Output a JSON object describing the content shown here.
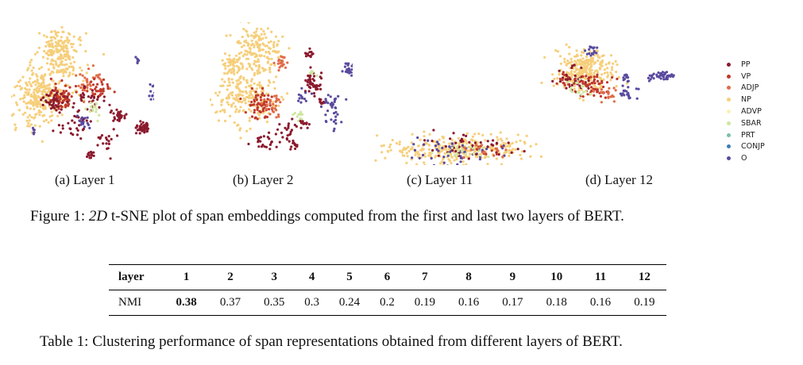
{
  "figure": {
    "panels": [
      {
        "id": "a",
        "caption": "(a) Layer 1"
      },
      {
        "id": "b",
        "caption": "(b) Layer 2"
      },
      {
        "id": "c",
        "caption": "(c) Layer 11"
      },
      {
        "id": "d",
        "caption": "(d) Layer 12"
      }
    ],
    "legend": [
      {
        "label": "PP",
        "color": "#8b1a2e"
      },
      {
        "label": "VP",
        "color": "#c0392b"
      },
      {
        "label": "ADJP",
        "color": "#e06c4a"
      },
      {
        "label": "NP",
        "color": "#f6cf7c"
      },
      {
        "label": "ADVP",
        "color": "#fbf1b5"
      },
      {
        "label": "SBAR",
        "color": "#cfe6a0"
      },
      {
        "label": "PRT",
        "color": "#7cc0a5"
      },
      {
        "label": "CONJP",
        "color": "#3a7fb8"
      },
      {
        "label": "O",
        "color": "#5a4a9e"
      }
    ],
    "caption": {
      "prefix": "Figure 1: ",
      "math": "2D",
      "text": " t-SNE plot of span embeddings computed from the first and last two layers of BERT."
    }
  },
  "table": {
    "header_label": "layer",
    "layers": [
      "1",
      "2",
      "3",
      "4",
      "5",
      "6",
      "7",
      "8",
      "9",
      "10",
      "11",
      "12"
    ],
    "row_label": "NMI",
    "nmi": [
      "0.38",
      "0.37",
      "0.35",
      "0.3",
      "0.24",
      "0.2",
      "0.19",
      "0.16",
      "0.17",
      "0.18",
      "0.16",
      "0.19"
    ],
    "best_index": 0,
    "caption": "Table 1: Clustering performance of span representations obtained from different layers of BERT."
  }
}
